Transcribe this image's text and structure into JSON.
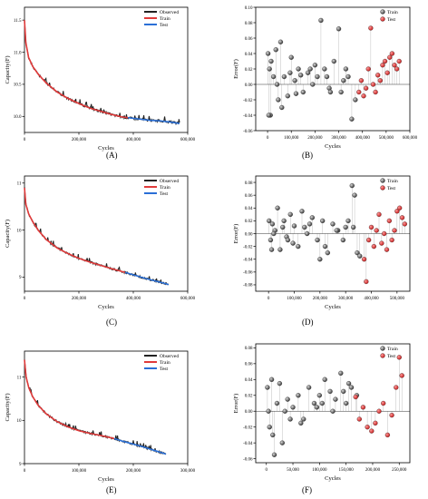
{
  "figure": {
    "captions": [
      "(A)",
      "(B)",
      "(C)",
      "(D)",
      "(E)",
      "(F)"
    ]
  },
  "colors": {
    "observed": "#222222",
    "train_line": "#e03a3a",
    "test_line": "#2a6fd6",
    "train_point": "#7a7a7a",
    "test_point": "#e23c3c",
    "stem": "#b0b0b0"
  },
  "chart_data": [
    {
      "type": "line",
      "panel": "A",
      "xlabel": "Cycles",
      "ylabel": "Capacity(F)",
      "xlim": [
        0,
        600000
      ],
      "ylim": [
        9.75,
        11.7
      ],
      "xticks": [
        0,
        200000,
        400000,
        600000
      ],
      "xtick_labels": [
        "0",
        "200,000",
        "400,000",
        "600,000"
      ],
      "yticks": [
        10.0,
        10.5,
        11.0,
        11.5
      ],
      "ytick_labels": [
        "10.0",
        "10.5",
        "11.0",
        "11.5"
      ],
      "legend": [
        "Observed",
        "Train",
        "Test"
      ],
      "legend_position": "top-right",
      "split_x": 380000,
      "x": [
        0,
        5000,
        15000,
        30000,
        50000,
        80000,
        120000,
        160000,
        200000,
        240000,
        280000,
        320000,
        360000,
        380000,
        420000,
        460000,
        500000,
        540000,
        570000
      ],
      "y": [
        11.5,
        11.15,
        10.92,
        10.78,
        10.66,
        10.52,
        10.38,
        10.28,
        10.2,
        10.13,
        10.08,
        10.03,
        9.99,
        9.98,
        9.96,
        9.94,
        9.93,
        9.91,
        9.89
      ]
    },
    {
      "type": "scatter",
      "panel": "B",
      "xlabel": "Cycles",
      "ylabel": "Error(F)",
      "xlim": [
        -50000,
        600000
      ],
      "ylim": [
        -0.06,
        0.1
      ],
      "xticks": [
        0,
        100000,
        200000,
        300000,
        400000,
        500000,
        600000
      ],
      "xtick_labels": [
        "0",
        "100,000",
        "200,000",
        "300,000",
        "400,000",
        "500,000",
        "600,000"
      ],
      "yticks": [
        -0.06,
        -0.04,
        -0.02,
        0.0,
        0.02,
        0.04,
        0.06,
        0.08,
        0.1
      ],
      "ytick_labels": [
        "-0.06",
        "-0.04",
        "-0.02",
        "0.00",
        "0.02",
        "0.04",
        "0.06",
        "0.08",
        "0.10"
      ],
      "legend": [
        "Train",
        "Test"
      ],
      "legend_position": "top-right",
      "series": [
        {
          "name": "Train",
          "x": [
            2000,
            8000,
            15000,
            25000,
            35000,
            45000,
            55000,
            70000,
            85000,
            100000,
            115000,
            130000,
            150000,
            170000,
            190000,
            210000,
            225000,
            240000,
            260000,
            280000,
            300000,
            320000,
            340000,
            355000,
            370000,
            12000,
            60000,
            95000,
            140000,
            200000,
            265000,
            330000,
            5000,
            40000,
            120000,
            180000,
            250000,
            310000
          ],
          "y": [
            0.04,
            0.02,
            0.03,
            0.01,
            0.045,
            -0.02,
            0.055,
            0.01,
            -0.015,
            0.035,
            0.005,
            0.02,
            -0.01,
            0.015,
            0.0,
            0.01,
            0.083,
            0.02,
            -0.005,
            0.03,
            0.072,
            0.005,
            0.01,
            -0.045,
            -0.02,
            -0.04,
            -0.03,
            0.015,
            0.012,
            0.025,
            -0.01,
            0.02,
            -0.04,
            0.0,
            -0.012,
            0.02,
            0.01,
            -0.01
          ]
        },
        {
          "name": "Test",
          "x": [
            385000,
            395000,
            405000,
            415000,
            425000,
            435000,
            445000,
            455000,
            465000,
            475000,
            485000,
            495000,
            505000,
            515000,
            525000,
            535000,
            545000,
            555000
          ],
          "y": [
            -0.01,
            0.005,
            -0.015,
            -0.005,
            0.02,
            0.073,
            0.0,
            -0.01,
            0.012,
            0.005,
            0.025,
            0.03,
            0.015,
            0.035,
            0.04,
            0.025,
            0.02,
            0.03
          ]
        }
      ]
    },
    {
      "type": "line",
      "panel": "C",
      "xlabel": "Cycles",
      "ylabel": "Capacity(F)",
      "xlim": [
        0,
        600000
      ],
      "ylim": [
        8.7,
        11.15
      ],
      "xticks": [
        0,
        200000,
        400000,
        600000
      ],
      "xtick_labels": [
        "0",
        "200,000",
        "400,000",
        "600,000"
      ],
      "yticks": [
        9,
        10,
        11
      ],
      "ytick_labels": [
        "9",
        "10",
        "11"
      ],
      "legend": [
        "Observed",
        "Train",
        "Test"
      ],
      "legend_position": "top-right",
      "split_x": 370000,
      "x": [
        0,
        5000,
        15000,
        30000,
        50000,
        80000,
        120000,
        160000,
        200000,
        240000,
        280000,
        320000,
        370000,
        400000,
        440000,
        480000,
        520000,
        530000
      ],
      "y": [
        10.9,
        10.55,
        10.35,
        10.18,
        10.0,
        9.8,
        9.62,
        9.5,
        9.4,
        9.32,
        9.25,
        9.18,
        9.1,
        9.05,
        8.98,
        8.92,
        8.86,
        8.84
      ]
    },
    {
      "type": "scatter",
      "panel": "D",
      "xlabel": "Cycles",
      "ylabel": "Error(F)",
      "xlim": [
        -50000,
        550000
      ],
      "ylim": [
        -0.09,
        0.09
      ],
      "xticks": [
        0,
        100000,
        200000,
        300000,
        400000,
        500000
      ],
      "xtick_labels": [
        "0",
        "100,000",
        "200,000",
        "300,000",
        "400,000",
        "500,000"
      ],
      "yticks": [
        -0.08,
        -0.06,
        -0.04,
        -0.02,
        0.0,
        0.02,
        0.04,
        0.06,
        0.08
      ],
      "ytick_labels": [
        "-0.08",
        "-0.06",
        "-0.04",
        "-0.02",
        "0.00",
        "0.02",
        "0.04",
        "0.06",
        "0.08"
      ],
      "legend": [
        "Train",
        "Test"
      ],
      "legend_position": "top-right",
      "series": [
        {
          "name": "Train",
          "x": [
            2000,
            8000,
            15000,
            25000,
            35000,
            45000,
            55000,
            70000,
            85000,
            100000,
            115000,
            130000,
            150000,
            170000,
            190000,
            210000,
            230000,
            250000,
            270000,
            290000,
            310000,
            325000,
            335000,
            345000,
            355000,
            12000,
            60000,
            95000,
            140000,
            200000,
            265000,
            330000,
            20000,
            75000,
            160000,
            220000,
            300000
          ],
          "y": [
            0.02,
            -0.01,
            0.015,
            0.005,
            0.04,
            -0.025,
            0.01,
            -0.005,
            0.03,
            0.012,
            -0.02,
            0.035,
            0.0,
            0.025,
            -0.01,
            0.02,
            -0.03,
            0.015,
            0.005,
            -0.01,
            0.02,
            0.075,
            0.06,
            -0.03,
            -0.035,
            -0.025,
            0.02,
            -0.015,
            0.01,
            -0.04,
            0.005,
            0.01,
            0.0,
            -0.01,
            0.015,
            -0.02,
            0.01
          ]
        },
        {
          "name": "Test",
          "x": [
            372000,
            380000,
            390000,
            400000,
            410000,
            420000,
            430000,
            440000,
            450000,
            460000,
            470000,
            480000,
            490000,
            500000,
            510000,
            520000,
            530000
          ],
          "y": [
            -0.04,
            -0.075,
            -0.01,
            0.01,
            -0.02,
            0.005,
            0.03,
            -0.015,
            0.0,
            -0.025,
            0.02,
            -0.01,
            0.005,
            0.035,
            0.04,
            0.025,
            0.015
          ]
        }
      ]
    },
    {
      "type": "line",
      "panel": "E",
      "xlabel": "Cycles",
      "ylabel": "Capacity(F)",
      "xlim": [
        0,
        300000
      ],
      "ylim": [
        9.0,
        11.6
      ],
      "xticks": [
        0,
        100000,
        200000,
        300000
      ],
      "xtick_labels": [
        "0",
        "100,000",
        "200,000",
        "300,000"
      ],
      "yticks": [
        9,
        10,
        11
      ],
      "ytick_labels": [
        "9",
        "10",
        "11"
      ],
      "legend": [
        "Observed",
        "Train",
        "Test"
      ],
      "legend_position": "top-right",
      "split_x": 165000,
      "x": [
        0,
        3000,
        8000,
        15000,
        25000,
        40000,
        60000,
        80000,
        100000,
        120000,
        140000,
        165000,
        180000,
        200000,
        220000,
        240000,
        260000
      ],
      "y": [
        11.4,
        11.0,
        10.75,
        10.55,
        10.35,
        10.15,
        9.97,
        9.85,
        9.76,
        9.7,
        9.65,
        9.58,
        9.52,
        9.45,
        9.38,
        9.3,
        9.22
      ]
    },
    {
      "type": "scatter",
      "panel": "F",
      "xlabel": "Cycles",
      "ylabel": "Error(F)",
      "xlim": [
        -20000,
        270000
      ],
      "ylim": [
        -0.065,
        0.085
      ],
      "xticks": [
        0,
        50000,
        100000,
        150000,
        200000,
        250000
      ],
      "xtick_labels": [
        "0",
        "50,000",
        "100,000",
        "150,000",
        "200,000",
        "250,000"
      ],
      "yticks": [
        -0.06,
        -0.04,
        -0.02,
        0.0,
        0.02,
        0.04,
        0.06,
        0.08
      ],
      "ytick_labels": [
        "-0.06",
        "-0.04",
        "-0.02",
        "0.00",
        "0.02",
        "0.04",
        "0.06",
        "0.08"
      ],
      "legend": [
        "Train",
        "Test"
      ],
      "legend_position": "top-right",
      "series": [
        {
          "name": "Train",
          "x": [
            2000,
            6000,
            10000,
            15000,
            20000,
            25000,
            30000,
            40000,
            50000,
            60000,
            70000,
            80000,
            90000,
            100000,
            110000,
            120000,
            130000,
            140000,
            150000,
            160000,
            170000,
            12000,
            35000,
            65000,
            95000,
            125000,
            155000,
            4000,
            45000,
            105000,
            145000
          ],
          "y": [
            0.03,
            -0.02,
            0.04,
            -0.055,
            0.01,
            0.035,
            -0.04,
            0.015,
            0.005,
            0.02,
            -0.01,
            0.03,
            0.01,
            0.02,
            0.04,
            0.025,
            0.015,
            0.048,
            0.01,
            0.03,
            0.02,
            -0.03,
            0.0,
            -0.015,
            0.005,
            0.0,
            0.035,
            0.0,
            -0.01,
            0.01,
            0.025
          ]
        },
        {
          "name": "Test",
          "x": [
            168000,
            175000,
            182000,
            190000,
            198000,
            205000,
            212000,
            220000,
            228000,
            236000,
            244000,
            250000,
            255000
          ],
          "y": [
            0.018,
            -0.01,
            0.005,
            -0.02,
            -0.025,
            -0.015,
            0.0,
            0.01,
            -0.03,
            -0.005,
            0.03,
            0.068,
            0.045
          ]
        }
      ]
    }
  ]
}
